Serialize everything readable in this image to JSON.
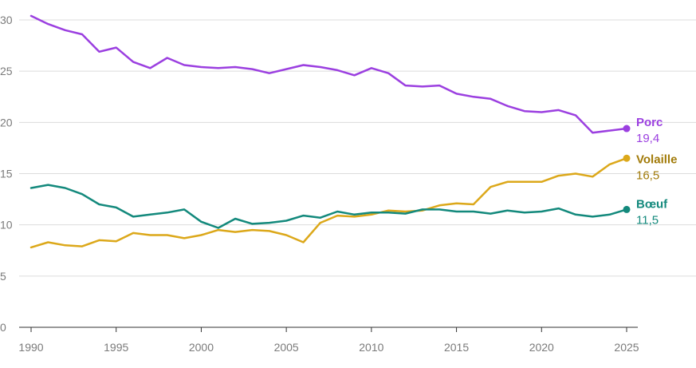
{
  "chart_data": {
    "type": "line",
    "title": "",
    "xlabel": "",
    "ylabel": "",
    "xlim": [
      1990,
      2025
    ],
    "ylim": [
      0,
      30
    ],
    "x_ticks": [
      "1990",
      "1995",
      "2000",
      "2005",
      "2010",
      "2015",
      "2020",
      "2025"
    ],
    "y_ticks": [
      "0",
      "5",
      "10",
      "15",
      "20",
      "25",
      "30"
    ],
    "grid": true,
    "legend": "direct labels at line ends (right)",
    "x": [
      1990,
      1991,
      1992,
      1993,
      1994,
      1995,
      1996,
      1997,
      1998,
      1999,
      2000,
      2001,
      2002,
      2003,
      2004,
      2005,
      2006,
      2007,
      2008,
      2009,
      2010,
      2011,
      2012,
      2013,
      2014,
      2015,
      2016,
      2017,
      2018,
      2019,
      2020,
      2021,
      2022,
      2023,
      2024,
      2025
    ],
    "series": [
      {
        "name": "Porc",
        "end_label": "19,4",
        "color": "#9b3fe0",
        "label_color": "#9b3fe0",
        "values": [
          30.4,
          29.6,
          29.0,
          28.6,
          26.9,
          27.3,
          25.9,
          25.3,
          26.3,
          25.6,
          25.4,
          25.3,
          25.4,
          25.2,
          24.8,
          25.2,
          25.6,
          25.4,
          25.1,
          24.6,
          25.3,
          24.8,
          23.6,
          23.5,
          23.6,
          22.8,
          22.5,
          22.3,
          21.6,
          21.1,
          21.0,
          21.2,
          20.7,
          19.0,
          19.2,
          19.4
        ]
      },
      {
        "name": "Volaille",
        "end_label": "16,5",
        "color": "#dca81a",
        "label_color": "#a17a08",
        "values": [
          7.8,
          8.3,
          8.0,
          7.9,
          8.5,
          8.4,
          9.2,
          9.0,
          9.0,
          8.7,
          9.0,
          9.5,
          9.3,
          9.5,
          9.4,
          9.0,
          8.3,
          10.2,
          10.9,
          10.8,
          11.0,
          11.4,
          11.3,
          11.4,
          11.9,
          12.1,
          12.0,
          13.7,
          14.2,
          14.2,
          14.2,
          14.8,
          15.0,
          14.7,
          15.9,
          16.5
        ]
      },
      {
        "name": "Bœuf",
        "end_label": "11,5",
        "color": "#13897c",
        "label_color": "#13897c",
        "values": [
          13.6,
          13.9,
          13.6,
          13.0,
          12.0,
          11.7,
          10.8,
          11.0,
          11.2,
          11.5,
          10.3,
          9.7,
          10.6,
          10.1,
          10.2,
          10.4,
          10.9,
          10.7,
          11.3,
          11.0,
          11.2,
          11.2,
          11.1,
          11.5,
          11.5,
          11.3,
          11.3,
          11.1,
          11.4,
          11.2,
          11.3,
          11.6,
          11.0,
          10.8,
          11.0,
          11.5
        ]
      }
    ]
  }
}
